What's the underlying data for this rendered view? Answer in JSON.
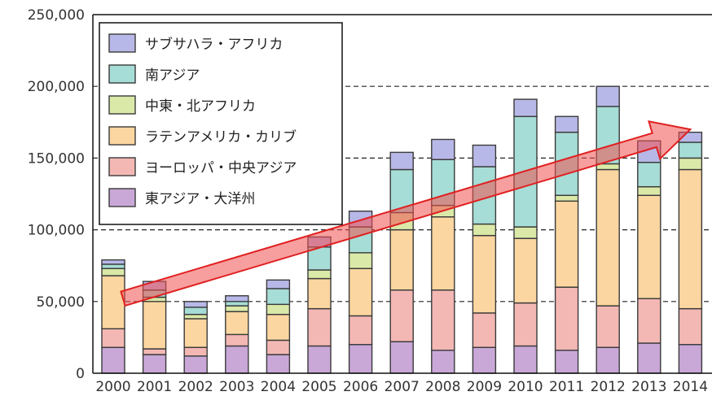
{
  "chart_data": {
    "type": "bar",
    "stacked": true,
    "categories": [
      "2000",
      "2001",
      "2002",
      "2003",
      "2004",
      "2005",
      "2006",
      "2007",
      "2008",
      "2009",
      "2010",
      "2011",
      "2012",
      "2013",
      "2014"
    ],
    "ylim": [
      0,
      250000
    ],
    "yticks": [
      0,
      50000,
      100000,
      150000,
      200000,
      250000
    ],
    "ytick_labels": [
      "0",
      "50,000",
      "100,000",
      "150,000",
      "200,000",
      "250,000"
    ],
    "grid": "horizontal dashed at 50,000 / 100,000 / 150,000 / 200,000",
    "legend_position": "top-left",
    "series": [
      {
        "name": "東アジア・大洋州",
        "color": "#c9a8d8",
        "values": [
          18000,
          13000,
          12000,
          19000,
          13000,
          19000,
          20000,
          22000,
          16000,
          18000,
          19000,
          16000,
          18000,
          21000,
          20000
        ]
      },
      {
        "name": "ヨーロッパ・中央アジア",
        "color": "#f4b8b4",
        "values": [
          13000,
          4000,
          6000,
          8000,
          10000,
          26000,
          20000,
          36000,
          42000,
          24000,
          30000,
          44000,
          29000,
          31000,
          25000
        ]
      },
      {
        "name": "ラテンアメリカ・カリブ",
        "color": "#fbd6a0",
        "values": [
          37000,
          33000,
          20000,
          16000,
          18000,
          21000,
          33000,
          42000,
          51000,
          54000,
          45000,
          60000,
          95000,
          72000,
          97000
        ]
      },
      {
        "name": "中東・北アフリカ",
        "color": "#dbe9a8",
        "values": [
          5000,
          3000,
          3000,
          4000,
          7000,
          6000,
          11000,
          12000,
          8000,
          8000,
          8000,
          4000,
          4000,
          6000,
          8000
        ]
      },
      {
        "name": "南アジア",
        "color": "#a6ddd6",
        "values": [
          3000,
          5000,
          5000,
          3000,
          11000,
          16000,
          18000,
          30000,
          32000,
          40000,
          77000,
          44000,
          40000,
          17000,
          11000
        ]
      },
      {
        "name": "サブサハラ・アフリカ",
        "color": "#b8b8e8",
        "values": [
          3000,
          6000,
          4000,
          4000,
          6000,
          7000,
          11000,
          12000,
          14000,
          15000,
          12000,
          11000,
          14000,
          15000,
          7000
        ]
      }
    ],
    "annotation": {
      "type": "trend-arrow",
      "color": "#f05050",
      "from_category": "2000",
      "from_value": 52000,
      "to_category": "2014",
      "to_value": 170000
    }
  }
}
